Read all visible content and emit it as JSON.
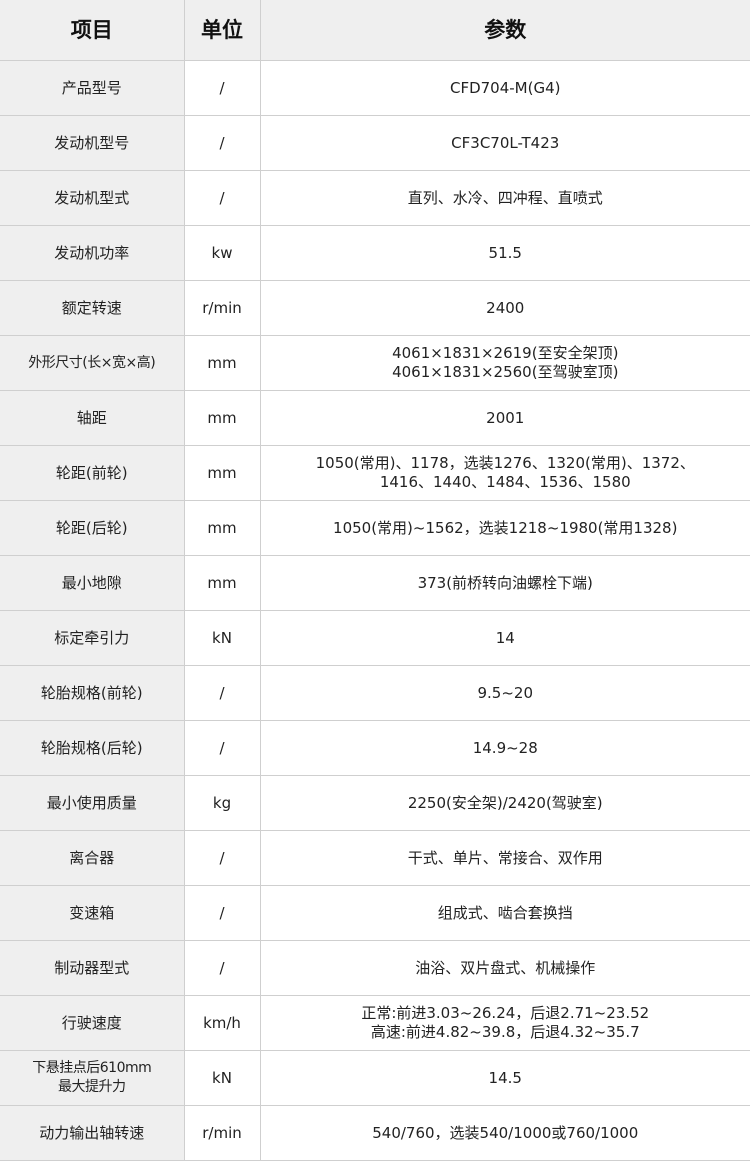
{
  "header": {
    "item": "项目",
    "unit": "单位",
    "param": "参数"
  },
  "rows": [
    {
      "item": "产品型号",
      "unit": "/",
      "value": "CFD704-M(G4)"
    },
    {
      "item": "发动机型号",
      "unit": "/",
      "value": "CF3C70L-T423"
    },
    {
      "item": "发动机型式",
      "unit": "/",
      "value": "直列、水冷、四冲程、直喷式"
    },
    {
      "item": "发动机功率",
      "unit": "kw",
      "value": "51.5"
    },
    {
      "item": "额定转速",
      "unit": "r/min",
      "value": "2400"
    },
    {
      "item": "外形尺寸(长×宽×高)",
      "unit": "mm",
      "value": "4061×1831×2619(至安全架顶)\n4061×1831×2560(至驾驶室顶)"
    },
    {
      "item": "轴距",
      "unit": "mm",
      "value": "2001"
    },
    {
      "item": "轮距(前轮)",
      "unit": "mm",
      "value": "1050(常用)、1178，选装1276、1320(常用)、1372、\n1416、1440、1484、1536、1580"
    },
    {
      "item": "轮距(后轮)",
      "unit": "mm",
      "value": "1050(常用)~1562，选装1218~1980(常用1328)"
    },
    {
      "item": "最小地隙",
      "unit": "mm",
      "value": "373(前桥转向油螺栓下端)"
    },
    {
      "item": "标定牵引力",
      "unit": "kN",
      "value": "14"
    },
    {
      "item": "轮胎规格(前轮)",
      "unit": "/",
      "value": "9.5~20"
    },
    {
      "item": "轮胎规格(后轮)",
      "unit": "/",
      "value": "14.9~28"
    },
    {
      "item": "最小使用质量",
      "unit": "kg",
      "value": "2250(安全架)/2420(驾驶室)"
    },
    {
      "item": "离合器",
      "unit": "/",
      "value": "干式、单片、常接合、双作用"
    },
    {
      "item": "变速箱",
      "unit": "/",
      "value": "组成式、啮合套换挡"
    },
    {
      "item": "制动器型式",
      "unit": "/",
      "value": "油浴、双片盘式、机械操作"
    },
    {
      "item": "行驶速度",
      "unit": "km/h",
      "value": "正常:前进3.03~26.24，后退2.71~23.52\n高速:前进4.82~39.8，后退4.32~35.7"
    },
    {
      "item": "下悬挂点后610mm\n最大提升力",
      "unit": "kN",
      "value": "14.5"
    },
    {
      "item": "动力输出轴转速",
      "unit": "r/min",
      "value": "540/760，选装540/1000或760/1000"
    }
  ]
}
